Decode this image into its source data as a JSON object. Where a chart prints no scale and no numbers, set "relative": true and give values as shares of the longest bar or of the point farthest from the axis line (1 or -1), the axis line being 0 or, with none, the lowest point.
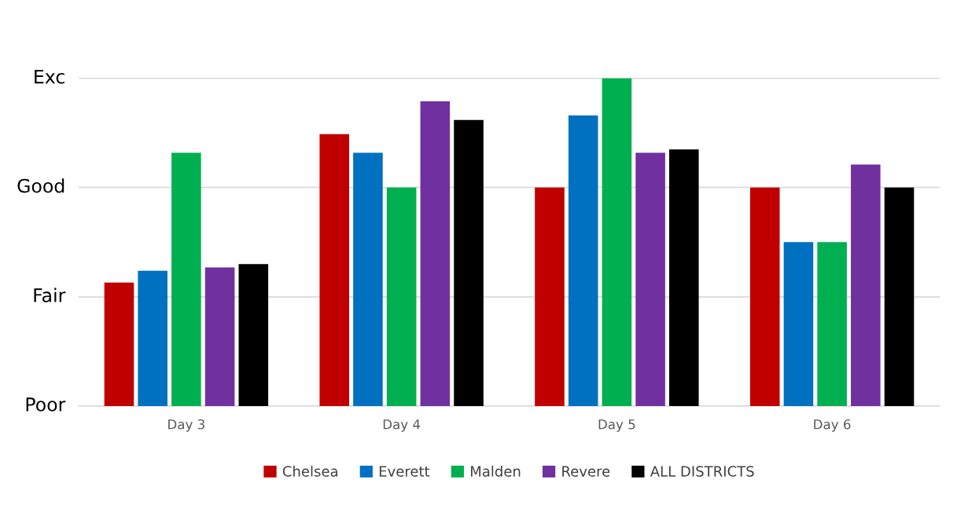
{
  "chart_data": {
    "type": "bar",
    "relative": true,
    "categories": [
      "Day 3",
      "Day 4",
      "Day 5",
      "Day 6"
    ],
    "series": [
      {
        "name": "Chelsea",
        "color": "#c00000",
        "values": [
          0.377,
          0.83,
          0.667,
          0.667
        ]
      },
      {
        "name": "Everett",
        "color": "#0070c0",
        "values": [
          0.413,
          0.773,
          0.887,
          0.5
        ]
      },
      {
        "name": "Malden",
        "color": "#00b050",
        "values": [
          0.773,
          0.667,
          1,
          0.5
        ]
      },
      {
        "name": "Revere",
        "color": "#7030a0",
        "values": [
          0.423,
          0.93,
          0.773,
          0.737
        ]
      },
      {
        "name": "ALL DISTRICTS",
        "color": "#000000",
        "values": [
          0.433,
          0.873,
          0.783,
          0.667
        ]
      }
    ],
    "ref_lines": [
      {
        "axis": "y",
        "value": 0,
        "label": "Poor",
        "color": "#d9d9d9"
      },
      {
        "axis": "y",
        "value": 0.333,
        "label": "Fair",
        "color": "#d9d9d9"
      },
      {
        "axis": "y",
        "value": 0.667,
        "label": "Good",
        "color": "#d9d9d9"
      },
      {
        "axis": "y",
        "value": 1,
        "label": "Exc",
        "color": "#d9d9d9"
      }
    ],
    "legend": "bottom"
  }
}
